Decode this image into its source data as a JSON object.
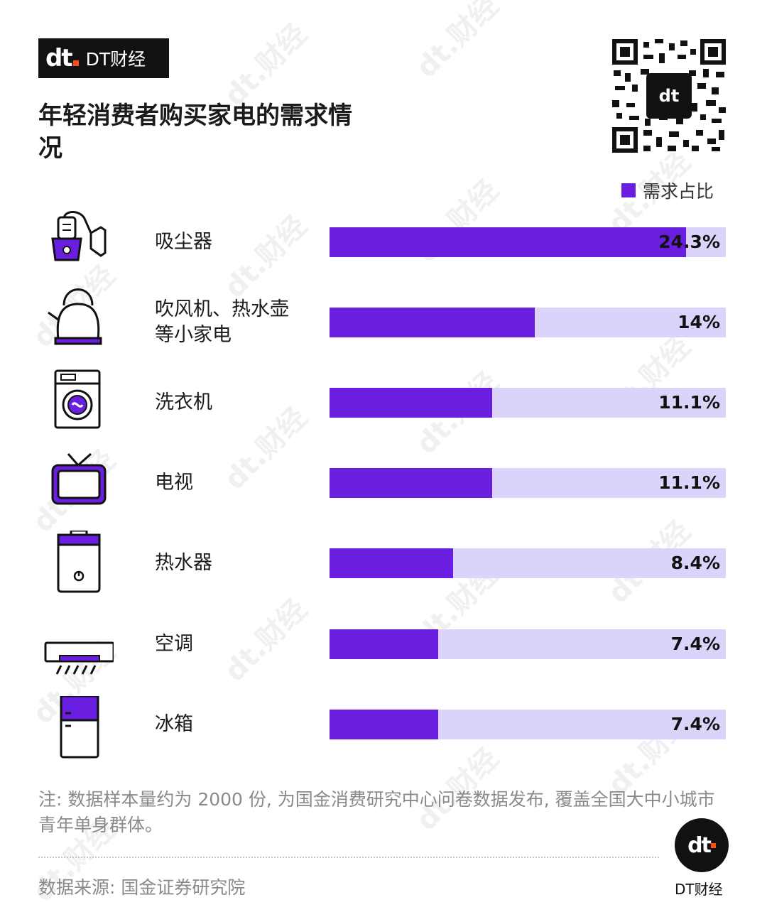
{
  "brand": {
    "logo_mark": "dt",
    "name": "DT财经",
    "footer_name": "DT财经"
  },
  "title": "年轻消费者购买家电的需求情况",
  "legend": "需求占比",
  "note": "注: 数据样本量约为 2000 份, 为国金消费研究中心问卷数据发布, 覆盖全国大中小城市青年单身群体。",
  "source": "数据来源: 国金证券研究院",
  "colors": {
    "bar": "#6a1fe0",
    "track": "#dcd3fa",
    "accent": "#ff4d1a"
  },
  "icons": [
    "vacuum-cleaner-icon",
    "kettle-icon",
    "washing-machine-icon",
    "tv-icon",
    "water-heater-icon",
    "air-conditioner-icon",
    "refrigerator-icon"
  ],
  "chart_data": {
    "type": "bar",
    "orientation": "horizontal",
    "title": "年轻消费者购买家电的需求情况",
    "categories": [
      "吸尘器",
      "吹风机、热水壶等小家电",
      "洗衣机",
      "电视",
      "热水器",
      "空调",
      "冰箱"
    ],
    "category_lines": [
      [
        "吸尘器"
      ],
      [
        "吹风机、热水壶",
        "等小家电"
      ],
      [
        "洗衣机"
      ],
      [
        "电视"
      ],
      [
        "热水器"
      ],
      [
        "空调"
      ],
      [
        "冰箱"
      ]
    ],
    "series": [
      {
        "name": "需求占比",
        "values": [
          24.3,
          14,
          11.1,
          11.1,
          8.4,
          7.4,
          7.4
        ],
        "labels": [
          "24.3%",
          "14%",
          "11.1%",
          "11.1%",
          "8.4%",
          "7.4%",
          "7.4%"
        ]
      }
    ],
    "xlim": [
      0,
      27
    ],
    "legend_position": "top-right",
    "grid": false
  }
}
